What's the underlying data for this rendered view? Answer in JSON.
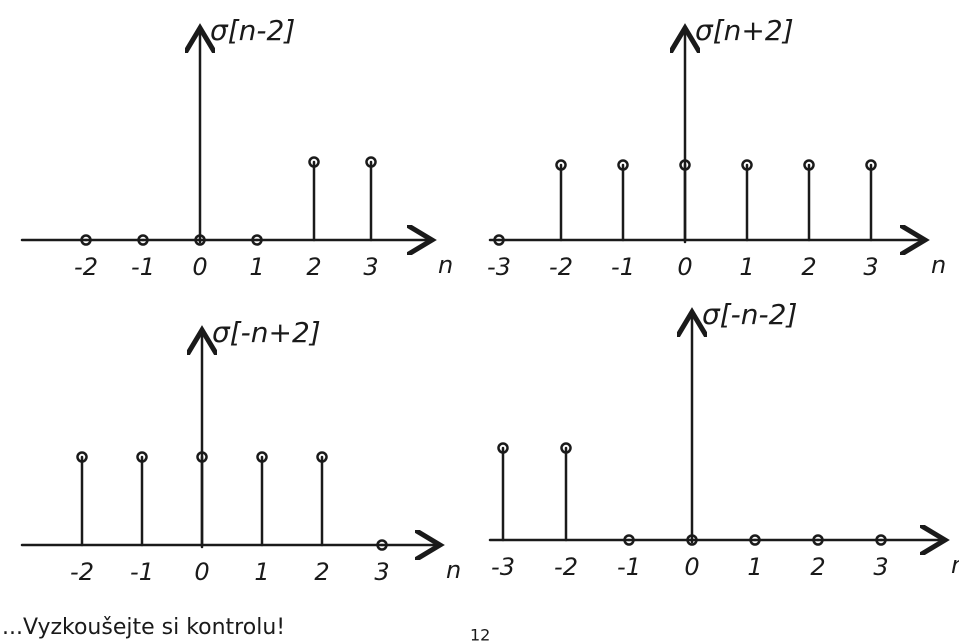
{
  "chart_data": [
    {
      "type": "stem",
      "title": "σ[n-2]",
      "x_label": "n",
      "x": [
        -2,
        -1,
        0,
        1,
        2,
        3
      ],
      "values": [
        0,
        0,
        0,
        0,
        1,
        1
      ],
      "ylim": [
        0,
        1
      ]
    },
    {
      "type": "stem",
      "title": "σ[n+2]",
      "x_label": "n",
      "x": [
        -3,
        -2,
        -1,
        0,
        1,
        2,
        3
      ],
      "values": [
        0,
        1,
        1,
        1,
        1,
        1,
        1
      ],
      "ylim": [
        0,
        1
      ]
    },
    {
      "type": "stem",
      "title": "σ[-n+2]",
      "x_label": "n",
      "x": [
        -2,
        -1,
        0,
        1,
        2,
        3
      ],
      "values": [
        1,
        1,
        1,
        1,
        1,
        0
      ],
      "ylim": [
        0,
        1
      ]
    },
    {
      "type": "stem",
      "title": "σ[-n-2]",
      "x_label": "n",
      "x": [
        -3,
        -2,
        -1,
        0,
        1,
        2,
        3
      ],
      "values": [
        1,
        1,
        0,
        0,
        0,
        0,
        0
      ],
      "ylim": [
        0,
        1
      ]
    }
  ],
  "footer": {
    "note": "...Vyzkoušejte si kontrolu!",
    "page": "12"
  }
}
